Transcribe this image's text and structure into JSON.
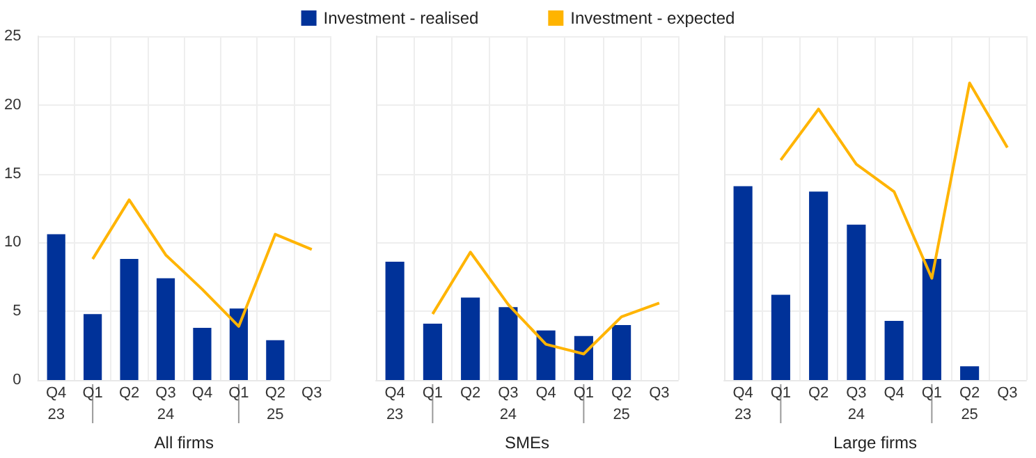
{
  "chart_data": [
    {
      "type": "bar",
      "xlabel": "All firms",
      "categories": [
        "Q4",
        "Q1",
        "Q2",
        "Q3",
        "Q4",
        "Q1",
        "Q2",
        "Q3"
      ],
      "annotations": [
        "23",
        "24",
        "25"
      ],
      "ylim": [
        0,
        25
      ],
      "yticks": [
        0,
        5,
        10,
        15,
        20,
        25
      ],
      "grid": true,
      "legend": "top",
      "series": [
        {
          "name": "Investment - realised",
          "color": "#003299",
          "values": [
            10.6,
            4.8,
            8.8,
            7.4,
            3.8,
            5.2,
            2.9,
            null
          ]
        },
        {
          "name": "Investment - expected",
          "type": "line",
          "color": "#ffb400",
          "values": [
            null,
            8.8,
            13.1,
            9.1,
            6.6,
            3.9,
            10.6,
            9.5
          ]
        }
      ]
    },
    {
      "type": "bar",
      "xlabel": "SMEs",
      "categories": [
        "Q4",
        "Q1",
        "Q2",
        "Q3",
        "Q4",
        "Q1",
        "Q2",
        "Q3"
      ],
      "annotations": [
        "23",
        "24",
        "25"
      ],
      "ylim": [
        0,
        25
      ],
      "yticks": [
        0,
        5,
        10,
        15,
        20,
        25
      ],
      "grid": true,
      "tick_labels": "x",
      "series": [
        {
          "color": "#003299",
          "values": [
            8.6,
            4.1,
            6.0,
            5.3,
            3.6,
            3.2,
            4.0,
            null
          ]
        },
        {
          "type": "line",
          "color": "#ffb400",
          "values": [
            null,
            4.8,
            9.3,
            5.5,
            2.6,
            1.9,
            4.6,
            5.6
          ]
        }
      ]
    },
    {
      "type": "bar",
      "xlabel": "Large firms",
      "categories": [
        "Q4",
        "Q1",
        "Q2",
        "Q3",
        "Q4",
        "Q1",
        "Q2",
        "Q3"
      ],
      "annotations": [
        "23",
        "24",
        "25"
      ],
      "ylim": [
        0,
        25
      ],
      "yticks": [
        0,
        5,
        10,
        15,
        20,
        25
      ],
      "grid": true,
      "tick_labels": "x",
      "series": [
        {
          "color": "#003299",
          "values": [
            14.1,
            6.2,
            13.7,
            11.3,
            4.3,
            8.8,
            1.0,
            null
          ]
        },
        {
          "type": "line",
          "color": "#ffb400",
          "values": [
            null,
            16.0,
            19.7,
            15.7,
            13.7,
            7.4,
            21.6,
            16.9
          ]
        }
      ]
    }
  ]
}
